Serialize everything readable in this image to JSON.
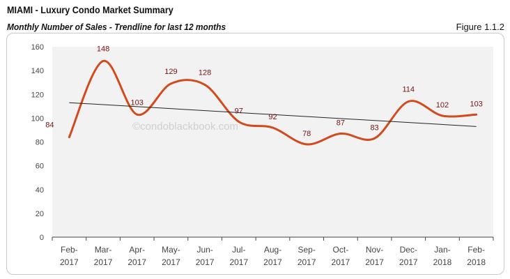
{
  "header": {
    "title": "MIAMI - Luxury Condo Market Summary",
    "subtitle": "Monthly Number of Sales - Trendline for last 12 months",
    "figure": "Figure 1.1.2"
  },
  "watermark": "©condoblackbook.com",
  "chart_data": {
    "type": "line",
    "categories": [
      [
        "Feb-",
        "2017"
      ],
      [
        "Mar-",
        "2017"
      ],
      [
        "Apr-",
        "2017"
      ],
      [
        "May-",
        "2017"
      ],
      [
        "Jun-",
        "2017"
      ],
      [
        "Jul-",
        "2017"
      ],
      [
        "Aug-",
        "2017"
      ],
      [
        "Sep-",
        "2017"
      ],
      [
        "Oct-",
        "2017"
      ],
      [
        "Nov-",
        "2017"
      ],
      [
        "Dec-",
        "2017"
      ],
      [
        "Jan-",
        "2018"
      ],
      [
        "Feb-",
        "2018"
      ]
    ],
    "values": [
      84,
      148,
      103,
      129,
      128,
      97,
      92,
      78,
      87,
      83,
      114,
      102,
      103
    ],
    "ylim": [
      0,
      160
    ],
    "yticks": [
      0,
      20,
      40,
      60,
      80,
      100,
      120,
      140,
      160
    ],
    "trendline": {
      "start": 113,
      "end": 93
    },
    "colors": {
      "line": "#d24a1e",
      "labels": "#7a1010",
      "trend": "#222222",
      "plot_bg": "#f2f2f2"
    },
    "smooth": true,
    "grid": false,
    "legend": "none"
  }
}
